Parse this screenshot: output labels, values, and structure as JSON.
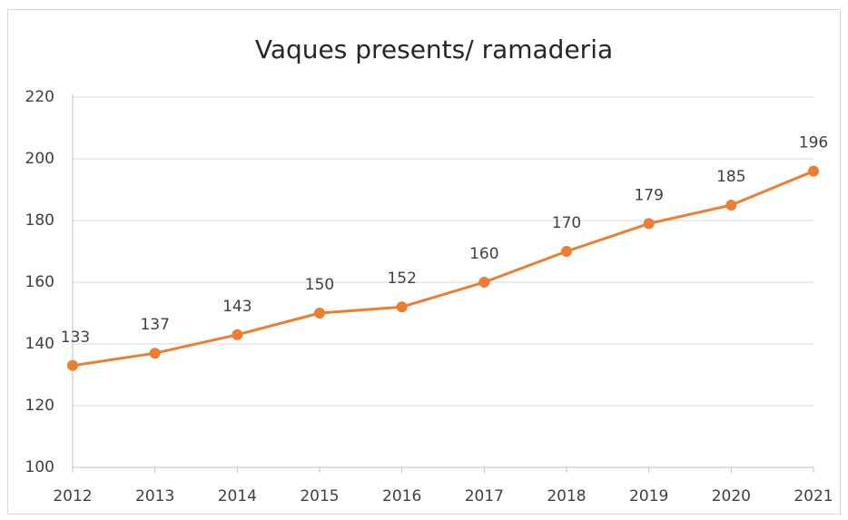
{
  "chart_data": {
    "type": "line",
    "title": "Vaques presents/ ramaderia",
    "categories": [
      "2012",
      "2013",
      "2014",
      "2015",
      "2016",
      "2017",
      "2018",
      "2019",
      "2020",
      "2021"
    ],
    "series": [
      {
        "name": "Vaques presents/ ramaderia",
        "color": "#ed7d31",
        "values": [
          133,
          137,
          143,
          150,
          152,
          160,
          170,
          179,
          185,
          196
        ]
      }
    ],
    "ylim": [
      100,
      220
    ],
    "yticks": [
      100,
      120,
      140,
      160,
      180,
      200,
      220
    ],
    "grid": true,
    "data_labels": true,
    "legend": false
  }
}
